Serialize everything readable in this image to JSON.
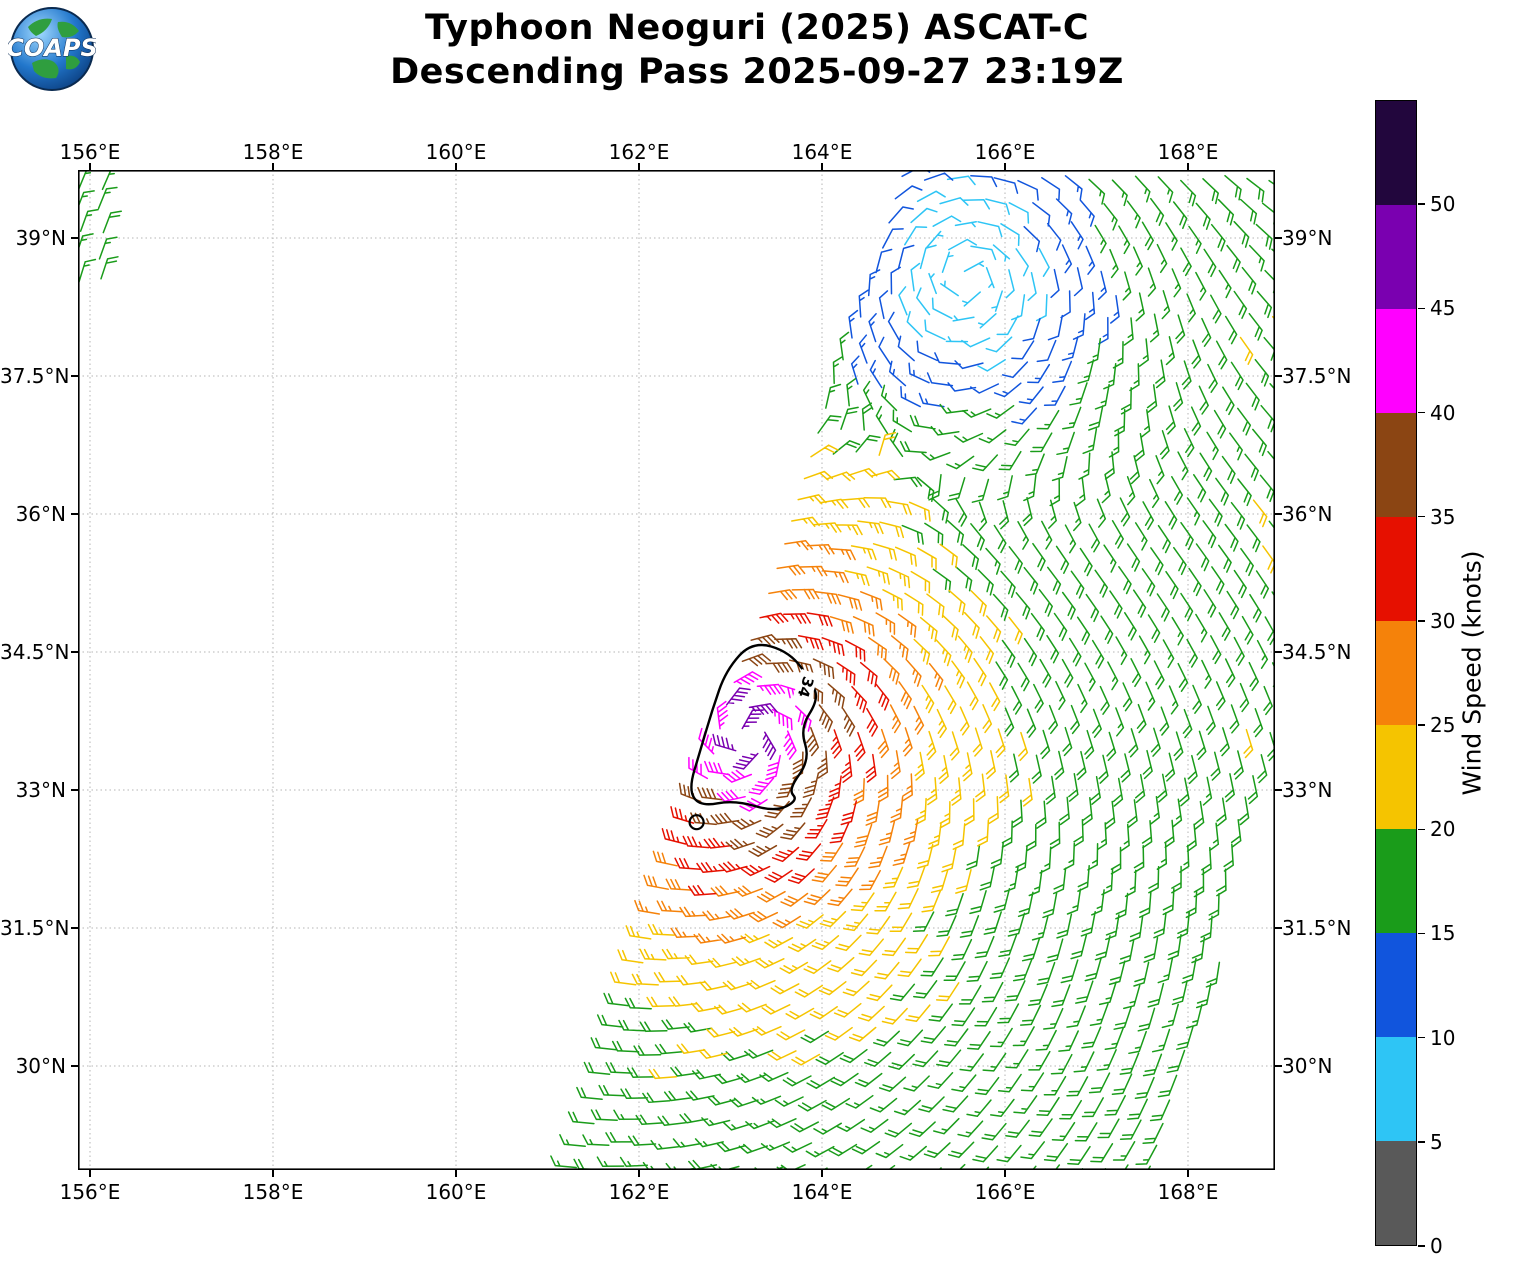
{
  "header": {
    "title_line1": "Typhoon Neoguri (2025) ASCAT-C",
    "title_line2": "Descending Pass 2025-09-27 23:19Z"
  },
  "logo": {
    "text": "COAPS"
  },
  "chart_data": {
    "type": "wind_barb_map",
    "title": "Typhoon Neoguri (2025) ASCAT-C",
    "subtitle": "Descending Pass 2025-09-27 23:19Z",
    "satellite": "ASCAT-C",
    "pass_type": "Descending",
    "pass_time": "2025-09-27 23:19Z",
    "projection_extent": {
      "lon_min": 155.87,
      "lon_max": 168.95,
      "lat_min": 28.87,
      "lat_max": 39.74
    },
    "x_axis": {
      "tick_values": [
        156,
        158,
        160,
        162,
        164,
        166,
        168
      ],
      "tick_labels": [
        "156°E",
        "158°E",
        "160°E",
        "162°E",
        "164°E",
        "166°E",
        "168°E"
      ]
    },
    "y_axis": {
      "tick_values": [
        39,
        37.5,
        36,
        34.5,
        33,
        31.5,
        30
      ],
      "tick_labels": [
        "39°N",
        "37.5°N",
        "36°N",
        "34.5°N",
        "33°N",
        "31.5°N",
        "30°N"
      ]
    },
    "grid": {
      "visible": true,
      "style": "dotted",
      "color": "#b5b5b5"
    },
    "colorbar": {
      "label": "Wind Speed (knots)",
      "tick_labels": [
        "0",
        "5",
        "10",
        "15",
        "20",
        "25",
        "30",
        "35",
        "40",
        "45",
        "50"
      ],
      "levels_knots": [
        0,
        5,
        10,
        15,
        20,
        25,
        30,
        35,
        40,
        45,
        50
      ],
      "colors_low_to_high": [
        "#595959",
        "#2ec5f5",
        "#1155dd",
        "#1a9c1a",
        "#f5c400",
        "#f5820a",
        "#e61000",
        "#8b4513",
        "#ff00ff",
        "#7a00b0",
        "#22063d"
      ]
    },
    "contour_34kt": {
      "label": "34",
      "value_knots": 34,
      "points_lonlat": [
        [
          163.24,
          34.62
        ],
        [
          163.65,
          34.5
        ],
        [
          163.89,
          34.17
        ],
        [
          163.96,
          33.98
        ],
        [
          163.76,
          33.67
        ],
        [
          163.87,
          33.33
        ],
        [
          163.63,
          33.0
        ],
        [
          163.74,
          32.89
        ],
        [
          163.49,
          32.76
        ],
        [
          163.05,
          32.89
        ],
        [
          162.67,
          32.82
        ],
        [
          162.54,
          33.0
        ],
        [
          162.67,
          33.43
        ],
        [
          162.8,
          33.87
        ],
        [
          162.95,
          34.3
        ]
      ],
      "small_loop_center": [
        162.63,
        32.65
      ],
      "label_pos_lonlat": [
        163.82,
        34.12
      ],
      "label_rotation_deg": 18
    },
    "wind_field_model": {
      "storm_center": {
        "lon": 163.2,
        "lat": 33.6,
        "peak_knots": 47
      },
      "weak_region_center": {
        "lon": 165.6,
        "lat": 38.6,
        "min_knots": 5
      },
      "background_knots": 17,
      "grid_step_deg": 0.25,
      "swaths": [
        {
          "name": "main",
          "lat_min": 28.9,
          "lat_max": 39.72,
          "left_lon_at_28_9": 161.32,
          "left_slope": 0.333,
          "right_lon_at_28_9": 167.72,
          "right_slope": 0.27
        },
        {
          "name": "west-edge",
          "lat_min": 38.55,
          "lat_max": 39.72,
          "left_lon_at_28_9": 155.87,
          "left_slope": 0,
          "right_lon_at_28_9": 156.3,
          "right_slope": 0
        }
      ]
    }
  }
}
